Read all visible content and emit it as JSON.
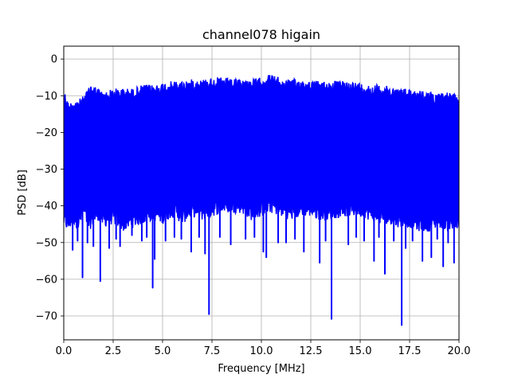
{
  "chart_data": {
    "type": "line",
    "title": "channel078 higain",
    "xlabel": "Frequency [MHz]",
    "ylabel": "PSD [dB]",
    "xlim": [
      0.0,
      20.0
    ],
    "ylim": [
      -76.5,
      3.5
    ],
    "xticks": [
      0.0,
      2.5,
      5.0,
      7.5,
      10.0,
      12.5,
      15.0,
      17.5,
      20.0
    ],
    "xtick_labels": [
      "0.0",
      "2.5",
      "5.0",
      "7.5",
      "10.0",
      "12.5",
      "15.0",
      "17.5",
      "20.0"
    ],
    "yticks": [
      0,
      -10,
      -20,
      -30,
      -40,
      -50,
      -60,
      -70
    ],
    "ytick_labels": [
      "0",
      "−10",
      "−20",
      "−30",
      "−40",
      "−50",
      "−60",
      "−70"
    ],
    "grid": true,
    "line_color": "#0000ff",
    "series": [
      {
        "x": [
          0.0,
          0.25,
          0.5,
          0.75,
          1.0,
          1.25,
          1.4,
          1.75,
          2.0,
          2.5,
          3.0,
          3.5,
          4.0,
          4.5,
          5.0,
          5.5,
          6.0,
          6.5,
          7.0,
          7.5,
          8.0,
          8.5,
          9.0,
          9.5,
          10.0,
          10.5,
          11.0,
          11.5,
          12.0,
          12.5,
          13.0,
          13.5,
          14.0,
          14.5,
          15.0,
          15.5,
          16.0,
          16.5,
          17.0,
          17.5,
          18.0,
          18.5,
          19.0,
          19.5,
          20.0
        ],
        "upper": [
          -8,
          -12,
          -11,
          -11,
          -10,
          -8,
          -6.5,
          -8,
          -9,
          -8,
          -8,
          -8,
          -7,
          -7,
          -6.5,
          -6,
          -6,
          -5.5,
          -5.5,
          -5,
          -5,
          -5.5,
          -5.5,
          -5.5,
          -5,
          -4,
          -5.5,
          -5.5,
          -5.5,
          -6,
          -6,
          -6,
          -6,
          -6,
          -6.5,
          -7,
          -7,
          -7.5,
          -8,
          -8,
          -8.5,
          -9,
          -9,
          -9,
          -10
        ],
        "lower": [
          -46,
          -47,
          -45,
          -47,
          -43,
          -47,
          -46,
          -44,
          -46,
          -45,
          -47,
          -46,
          -45,
          -44,
          -45,
          -43,
          -45,
          -43,
          -44,
          -43,
          -42,
          -42,
          -42,
          -44,
          -43,
          -42,
          -43,
          -44,
          -43,
          -43,
          -44,
          -44,
          -43,
          -43,
          -43,
          -44,
          -45,
          -45,
          -46,
          -46,
          -47,
          -47,
          -46,
          -47,
          -47
        ]
      }
    ],
    "dips": [
      {
        "x": 0.45,
        "y": -52
      },
      {
        "x": 0.95,
        "y": -59.5
      },
      {
        "x": 1.5,
        "y": -51
      },
      {
        "x": 1.85,
        "y": -60.5
      },
      {
        "x": 2.3,
        "y": -51.5
      },
      {
        "x": 2.85,
        "y": -51
      },
      {
        "x": 3.45,
        "y": -48
      },
      {
        "x": 3.95,
        "y": -49.5
      },
      {
        "x": 4.5,
        "y": -62.3
      },
      {
        "x": 4.6,
        "y": -54.5
      },
      {
        "x": 5.15,
        "y": -49.5
      },
      {
        "x": 5.95,
        "y": -49
      },
      {
        "x": 6.45,
        "y": -52.5
      },
      {
        "x": 7.15,
        "y": -53
      },
      {
        "x": 7.35,
        "y": -69.5
      },
      {
        "x": 8.45,
        "y": -50.5
      },
      {
        "x": 9.2,
        "y": -49
      },
      {
        "x": 10.1,
        "y": -52.5
      },
      {
        "x": 10.25,
        "y": -54
      },
      {
        "x": 10.85,
        "y": -50
      },
      {
        "x": 11.25,
        "y": -50
      },
      {
        "x": 12.15,
        "y": -52.5
      },
      {
        "x": 12.95,
        "y": -55.5
      },
      {
        "x": 13.55,
        "y": -70.8
      },
      {
        "x": 14.4,
        "y": -50.5
      },
      {
        "x": 15.2,
        "y": -49.5
      },
      {
        "x": 15.7,
        "y": -55
      },
      {
        "x": 16.25,
        "y": -58.5
      },
      {
        "x": 16.7,
        "y": -49.5
      },
      {
        "x": 17.1,
        "y": -72.5
      },
      {
        "x": 17.3,
        "y": -51.5
      },
      {
        "x": 18.15,
        "y": -55
      },
      {
        "x": 18.6,
        "y": -54
      },
      {
        "x": 19.2,
        "y": -56.5
      },
      {
        "x": 19.75,
        "y": -55.5
      }
    ],
    "extra_lows": [
      {
        "x": 0.7,
        "y": -49.5
      },
      {
        "x": 1.2,
        "y": -50
      },
      {
        "x": 2.65,
        "y": -49
      },
      {
        "x": 4.2,
        "y": -48.5
      },
      {
        "x": 5.6,
        "y": -48.5
      },
      {
        "x": 6.85,
        "y": -48.5
      },
      {
        "x": 7.9,
        "y": -48.5
      },
      {
        "x": 9.65,
        "y": -48.5
      },
      {
        "x": 11.7,
        "y": -49
      },
      {
        "x": 13.25,
        "y": -49.5
      },
      {
        "x": 14.8,
        "y": -48.5
      },
      {
        "x": 15.95,
        "y": -48.5
      },
      {
        "x": 17.65,
        "y": -49.5
      },
      {
        "x": 18.9,
        "y": -49
      },
      {
        "x": 19.45,
        "y": -50
      }
    ]
  }
}
